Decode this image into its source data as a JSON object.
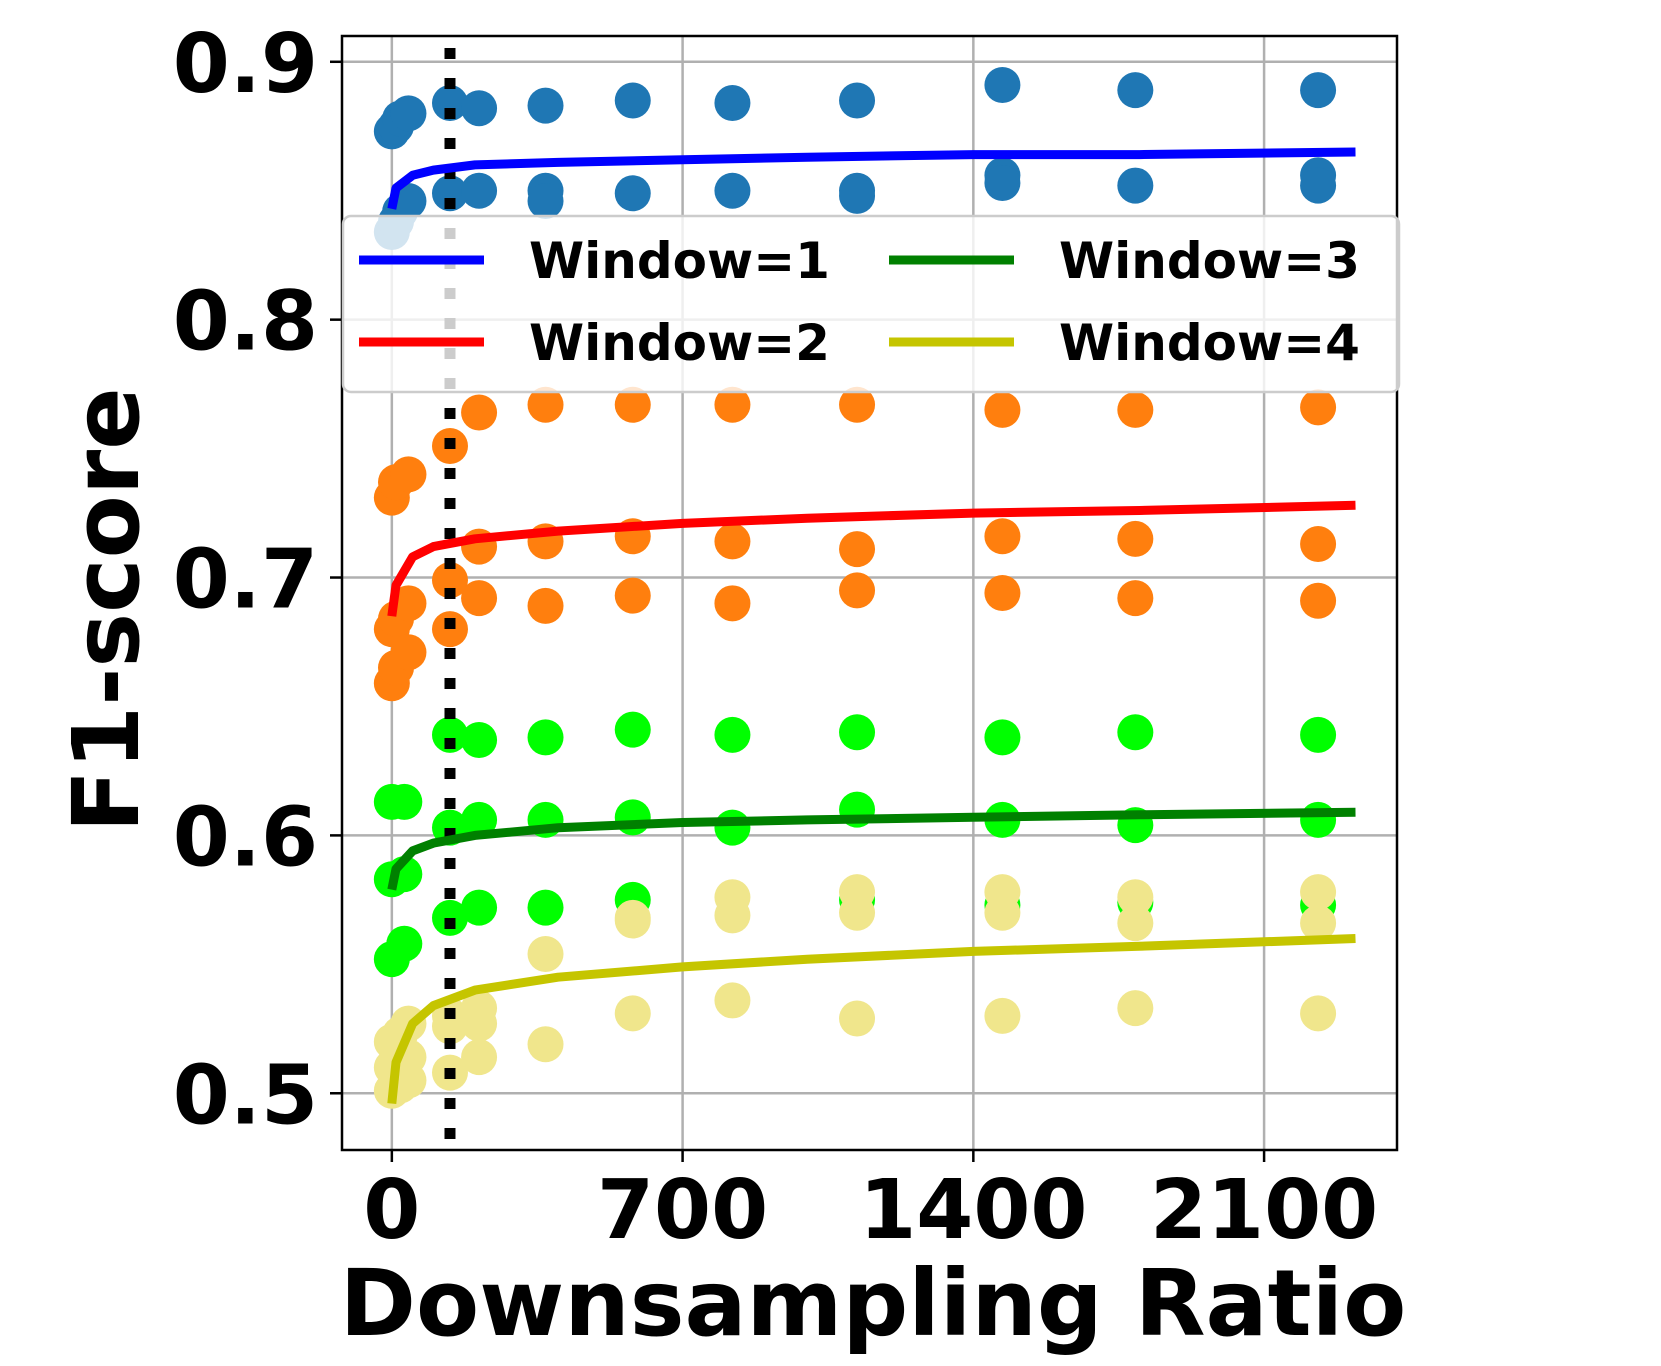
{
  "chart_data": {
    "type": "scatter",
    "title": "",
    "xlabel": "Downsampling Ratio",
    "ylabel": "F1-score",
    "xlim": [
      -120,
      2420
    ],
    "ylim": [
      0.478,
      0.91
    ],
    "xticks": [
      0,
      700,
      1400,
      2100
    ],
    "xtick_labels": [
      "0",
      "700",
      "1400",
      "2100"
    ],
    "yticks": [
      0.5,
      0.6,
      0.7,
      0.8,
      0.9
    ],
    "ytick_labels": [
      "0.5",
      "0.6",
      "0.7",
      "0.8",
      "0.9"
    ],
    "grid": true,
    "legend_placement": "upper-center, 2 columns",
    "reference_line": {
      "x": 140,
      "style": "dotted",
      "color": "#000000"
    },
    "curves": [
      {
        "name": "Window=1",
        "color": "#0000ff",
        "x": [
          0,
          10,
          50,
          100,
          200,
          400,
          700,
          1000,
          1400,
          1800,
          2320
        ],
        "y": [
          0.843,
          0.851,
          0.856,
          0.858,
          0.86,
          0.861,
          0.862,
          0.863,
          0.864,
          0.864,
          0.865
        ]
      },
      {
        "name": "Window=2",
        "color": "#ff0000",
        "x": [
          0,
          10,
          50,
          100,
          200,
          400,
          700,
          1000,
          1400,
          1800,
          2320
        ],
        "y": [
          0.685,
          0.697,
          0.708,
          0.712,
          0.715,
          0.718,
          0.721,
          0.723,
          0.725,
          0.726,
          0.728
        ]
      },
      {
        "name": "Window=3",
        "color": "#008000",
        "x": [
          0,
          10,
          50,
          100,
          200,
          400,
          700,
          1000,
          1400,
          1800,
          2320
        ],
        "y": [
          0.579,
          0.587,
          0.594,
          0.597,
          0.6,
          0.603,
          0.605,
          0.606,
          0.607,
          0.608,
          0.609
        ]
      },
      {
        "name": "Window=4",
        "color": "#c5c500",
        "x": [
          0,
          10,
          50,
          100,
          200,
          400,
          700,
          1000,
          1400,
          1800,
          2320
        ],
        "y": [
          0.496,
          0.512,
          0.527,
          0.534,
          0.54,
          0.545,
          0.549,
          0.552,
          0.555,
          0.557,
          0.56
        ]
      }
    ],
    "scatter_series": [
      {
        "color": "#1f77b4",
        "points": [
          [
            0,
            0.873
          ],
          [
            10,
            0.875
          ],
          [
            20,
            0.878
          ],
          [
            40,
            0.88
          ],
          [
            0,
            0.834
          ],
          [
            10,
            0.838
          ],
          [
            20,
            0.842
          ],
          [
            40,
            0.846
          ],
          [
            140,
            0.884
          ],
          [
            140,
            0.849
          ],
          [
            210,
            0.882
          ],
          [
            210,
            0.85
          ],
          [
            370,
            0.883
          ],
          [
            370,
            0.85
          ],
          [
            370,
            0.846
          ],
          [
            580,
            0.885
          ],
          [
            580,
            0.849
          ],
          [
            820,
            0.884
          ],
          [
            820,
            0.85
          ],
          [
            1120,
            0.885
          ],
          [
            1120,
            0.85
          ],
          [
            1120,
            0.848
          ],
          [
            1470,
            0.891
          ],
          [
            1470,
            0.856
          ],
          [
            1470,
            0.853
          ],
          [
            1790,
            0.889
          ],
          [
            1790,
            0.852
          ],
          [
            2230,
            0.889
          ],
          [
            2230,
            0.856
          ],
          [
            2230,
            0.852
          ]
        ]
      },
      {
        "color": "#ff7f0e",
        "points": [
          [
            0,
            0.731
          ],
          [
            10,
            0.737
          ],
          [
            40,
            0.74
          ],
          [
            0,
            0.68
          ],
          [
            10,
            0.684
          ],
          [
            40,
            0.69
          ],
          [
            0,
            0.659
          ],
          [
            10,
            0.665
          ],
          [
            40,
            0.671
          ],
          [
            140,
            0.751
          ],
          [
            140,
            0.699
          ],
          [
            140,
            0.68
          ],
          [
            210,
            0.764
          ],
          [
            210,
            0.712
          ],
          [
            210,
            0.692
          ],
          [
            370,
            0.767
          ],
          [
            370,
            0.714
          ],
          [
            370,
            0.689
          ],
          [
            580,
            0.767
          ],
          [
            580,
            0.716
          ],
          [
            580,
            0.693
          ],
          [
            820,
            0.767
          ],
          [
            820,
            0.714
          ],
          [
            820,
            0.69
          ],
          [
            1120,
            0.767
          ],
          [
            1120,
            0.711
          ],
          [
            1120,
            0.695
          ],
          [
            1470,
            0.765
          ],
          [
            1470,
            0.716
          ],
          [
            1470,
            0.694
          ],
          [
            1790,
            0.765
          ],
          [
            1790,
            0.715
          ],
          [
            1790,
            0.692
          ],
          [
            2230,
            0.766
          ],
          [
            2230,
            0.713
          ],
          [
            2230,
            0.691
          ]
        ]
      },
      {
        "color": "#00ff00",
        "points": [
          [
            0,
            0.613
          ],
          [
            30,
            0.613
          ],
          [
            0,
            0.583
          ],
          [
            30,
            0.585
          ],
          [
            0,
            0.552
          ],
          [
            30,
            0.558
          ],
          [
            140,
            0.639
          ],
          [
            140,
            0.603
          ],
          [
            140,
            0.568
          ],
          [
            210,
            0.637
          ],
          [
            210,
            0.606
          ],
          [
            210,
            0.572
          ],
          [
            370,
            0.638
          ],
          [
            370,
            0.606
          ],
          [
            370,
            0.572
          ],
          [
            580,
            0.641
          ],
          [
            580,
            0.607
          ],
          [
            580,
            0.575
          ],
          [
            820,
            0.639
          ],
          [
            820,
            0.603
          ],
          [
            1120,
            0.64
          ],
          [
            1120,
            0.61
          ],
          [
            1120,
            0.575
          ],
          [
            1470,
            0.638
          ],
          [
            1470,
            0.606
          ],
          [
            1470,
            0.573
          ],
          [
            1790,
            0.64
          ],
          [
            1790,
            0.604
          ],
          [
            1790,
            0.574
          ],
          [
            2230,
            0.639
          ],
          [
            2230,
            0.606
          ],
          [
            2230,
            0.573
          ]
        ]
      },
      {
        "color": "#f0e68c",
        "points": [
          [
            0,
            0.52
          ],
          [
            20,
            0.523
          ],
          [
            40,
            0.527
          ],
          [
            0,
            0.51
          ],
          [
            20,
            0.512
          ],
          [
            40,
            0.514
          ],
          [
            0,
            0.501
          ],
          [
            20,
            0.503
          ],
          [
            40,
            0.505
          ],
          [
            140,
            0.53
          ],
          [
            140,
            0.526
          ],
          [
            140,
            0.508
          ],
          [
            210,
            0.533
          ],
          [
            210,
            0.527
          ],
          [
            210,
            0.514
          ],
          [
            370,
            0.554
          ],
          [
            370,
            0.519
          ],
          [
            580,
            0.568
          ],
          [
            580,
            0.567
          ],
          [
            580,
            0.531
          ],
          [
            820,
            0.576
          ],
          [
            820,
            0.569
          ],
          [
            820,
            0.536
          ],
          [
            1120,
            0.578
          ],
          [
            1120,
            0.57
          ],
          [
            1120,
            0.529
          ],
          [
            1470,
            0.578
          ],
          [
            1470,
            0.57
          ],
          [
            1470,
            0.53
          ],
          [
            1790,
            0.576
          ],
          [
            1790,
            0.566
          ],
          [
            1790,
            0.533
          ],
          [
            2230,
            0.578
          ],
          [
            2230,
            0.566
          ],
          [
            2230,
            0.531
          ]
        ]
      }
    ]
  }
}
